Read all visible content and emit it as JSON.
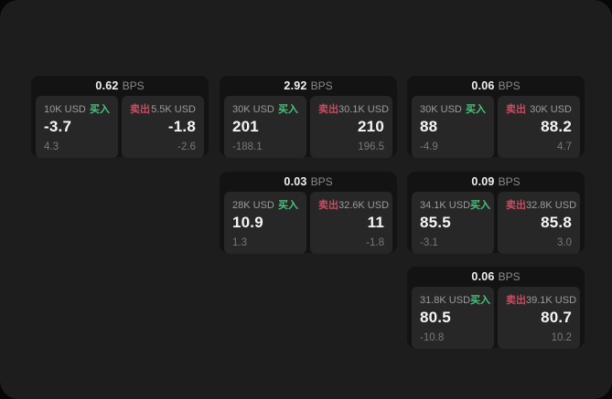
{
  "labels": {
    "bps": "BPS",
    "buy": "买入",
    "sell": "卖出"
  },
  "colors": {
    "buy": "#4bc17d",
    "sell": "#c94b63",
    "board_bg": "#1d1d1d",
    "card_bg": "#131313",
    "tile_bg": "#272727"
  },
  "cards": [
    {
      "bps": "0.62",
      "buy": {
        "amount": "10K USD",
        "price": "-3.7",
        "sub": "4.3"
      },
      "sell": {
        "amount": "5.5K USD",
        "price": "-1.8",
        "sub": "-2.6"
      }
    },
    {
      "bps": "2.92",
      "buy": {
        "amount": "30K USD",
        "price": "201",
        "sub": "-188.1"
      },
      "sell": {
        "amount": "30.1K USD",
        "price": "210",
        "sub": "196.5"
      }
    },
    {
      "bps": "0.06",
      "buy": {
        "amount": "30K USD",
        "price": "88",
        "sub": "-4.9"
      },
      "sell": {
        "amount": "30K USD",
        "price": "88.2",
        "sub": "4.7"
      }
    },
    {
      "bps": "0.03",
      "buy": {
        "amount": "28K USD",
        "price": "10.9",
        "sub": "1.3"
      },
      "sell": {
        "amount": "32.6K USD",
        "price": "11",
        "sub": "-1.8"
      }
    },
    {
      "bps": "0.09",
      "buy": {
        "amount": "34.1K USD",
        "price": "85.5",
        "sub": "-3.1"
      },
      "sell": {
        "amount": "32.8K USD",
        "price": "85.8",
        "sub": "3.0"
      }
    },
    {
      "bps": "0.06",
      "buy": {
        "amount": "31.8K USD",
        "price": "80.5",
        "sub": "-10.8"
      },
      "sell": {
        "amount": "39.1K USD",
        "price": "80.7",
        "sub": "10.2"
      }
    }
  ]
}
